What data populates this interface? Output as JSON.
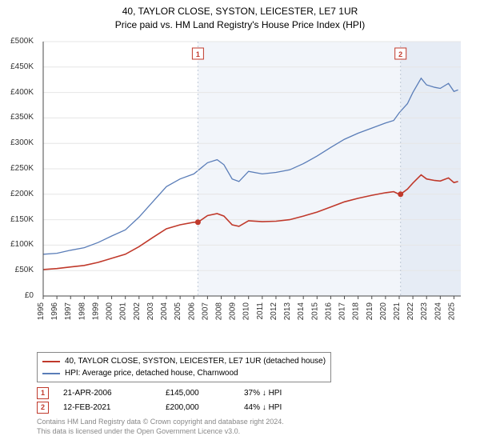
{
  "title_line1": "40, TAYLOR CLOSE, SYSTON, LEICESTER, LE7 1UR",
  "title_line2": "Price paid vs. HM Land Registry's House Price Index (HPI)",
  "chart": {
    "type": "line",
    "background_color": "#ffffff",
    "shaded_band1": {
      "x_from": 2006.3,
      "x_to": 2021.1,
      "color": "#f2f5fa"
    },
    "shaded_band2": {
      "x_from": 2021.1,
      "x_to": 2025.5,
      "color": "#e6ecf5"
    },
    "grid_color": "#e6e6e6",
    "axis_color": "#4a4a4a",
    "xlim": [
      1995,
      2025.5
    ],
    "ylim": [
      0,
      500000
    ],
    "ytick_step": 50000,
    "ytick_labels": [
      "£0",
      "£50K",
      "£100K",
      "£150K",
      "£200K",
      "£250K",
      "£300K",
      "£350K",
      "£400K",
      "£450K",
      "£500K"
    ],
    "xtick_years": [
      1995,
      1996,
      1997,
      1998,
      1999,
      2000,
      2001,
      2002,
      2003,
      2004,
      2005,
      2006,
      2007,
      2008,
      2009,
      2010,
      2011,
      2012,
      2013,
      2014,
      2015,
      2016,
      2017,
      2018,
      2019,
      2020,
      2021,
      2022,
      2023,
      2024,
      2025
    ],
    "tick_fontsize": 10,
    "series": [
      {
        "name": "HPI",
        "color": "#5a7db8",
        "width": 1.3,
        "label": "HPI: Average price, detached house, Charnwood",
        "points": [
          [
            1995,
            82000
          ],
          [
            1996,
            84000
          ],
          [
            1997,
            90000
          ],
          [
            1998,
            95000
          ],
          [
            1999,
            105000
          ],
          [
            2000,
            118000
          ],
          [
            2001,
            130000
          ],
          [
            2002,
            155000
          ],
          [
            2003,
            185000
          ],
          [
            2004,
            215000
          ],
          [
            2005,
            230000
          ],
          [
            2006,
            240000
          ],
          [
            2007,
            262000
          ],
          [
            2007.7,
            268000
          ],
          [
            2008.2,
            258000
          ],
          [
            2008.8,
            230000
          ],
          [
            2009.3,
            225000
          ],
          [
            2010,
            245000
          ],
          [
            2011,
            240000
          ],
          [
            2012,
            243000
          ],
          [
            2013,
            248000
          ],
          [
            2014,
            260000
          ],
          [
            2015,
            275000
          ],
          [
            2016,
            292000
          ],
          [
            2017,
            308000
          ],
          [
            2018,
            320000
          ],
          [
            2019,
            330000
          ],
          [
            2020,
            340000
          ],
          [
            2020.6,
            345000
          ],
          [
            2021,
            360000
          ],
          [
            2021.6,
            378000
          ],
          [
            2022,
            400000
          ],
          [
            2022.6,
            428000
          ],
          [
            2023,
            415000
          ],
          [
            2023.6,
            410000
          ],
          [
            2024,
            408000
          ],
          [
            2024.6,
            418000
          ],
          [
            2025,
            402000
          ],
          [
            2025.3,
            405000
          ]
        ]
      },
      {
        "name": "PricePaid",
        "color": "#c0392b",
        "width": 1.6,
        "label": "40, TAYLOR CLOSE, SYSTON, LEICESTER, LE7 1UR (detached house)",
        "points": [
          [
            1995,
            52000
          ],
          [
            1996,
            54000
          ],
          [
            1997,
            57000
          ],
          [
            1998,
            60000
          ],
          [
            1999,
            66000
          ],
          [
            2000,
            74000
          ],
          [
            2001,
            82000
          ],
          [
            2002,
            97000
          ],
          [
            2003,
            115000
          ],
          [
            2004,
            132000
          ],
          [
            2005,
            140000
          ],
          [
            2006,
            145000
          ],
          [
            2006.3,
            145000
          ],
          [
            2007,
            158000
          ],
          [
            2007.7,
            162000
          ],
          [
            2008.2,
            157000
          ],
          [
            2008.8,
            140000
          ],
          [
            2009.3,
            137000
          ],
          [
            2010,
            148000
          ],
          [
            2011,
            146000
          ],
          [
            2012,
            147000
          ],
          [
            2013,
            150000
          ],
          [
            2014,
            157000
          ],
          [
            2015,
            165000
          ],
          [
            2016,
            175000
          ],
          [
            2017,
            185000
          ],
          [
            2018,
            192000
          ],
          [
            2019,
            198000
          ],
          [
            2020,
            203000
          ],
          [
            2020.6,
            205000
          ],
          [
            2021,
            200000
          ],
          [
            2021.1,
            200000
          ],
          [
            2021.6,
            210000
          ],
          [
            2022,
            222000
          ],
          [
            2022.6,
            238000
          ],
          [
            2023,
            230000
          ],
          [
            2023.6,
            227000
          ],
          [
            2024,
            226000
          ],
          [
            2024.6,
            232000
          ],
          [
            2025,
            223000
          ],
          [
            2025.3,
            225000
          ]
        ]
      }
    ],
    "sale_markers": [
      {
        "id": "1",
        "x": 2006.3,
        "y": 145000,
        "color": "#c0392b"
      },
      {
        "id": "2",
        "x": 2021.1,
        "y": 200000,
        "color": "#c0392b"
      }
    ],
    "badge_y_top": 12
  },
  "legend": {
    "rows": [
      {
        "color": "#c0392b",
        "label": "40, TAYLOR CLOSE, SYSTON, LEICESTER, LE7 1UR (detached house)"
      },
      {
        "color": "#5a7db8",
        "label": "HPI: Average price, detached house, Charnwood"
      }
    ]
  },
  "marker_table": [
    {
      "id": "1",
      "color": "#c0392b",
      "date": "21-APR-2006",
      "price": "£145,000",
      "delta": "37% ↓ HPI"
    },
    {
      "id": "2",
      "color": "#c0392b",
      "date": "12-FEB-2021",
      "price": "£200,000",
      "delta": "44% ↓ HPI"
    }
  ],
  "footer": {
    "line1": "Contains HM Land Registry data © Crown copyright and database right 2024.",
    "line2": "This data is licensed under the Open Government Licence v3.0."
  }
}
